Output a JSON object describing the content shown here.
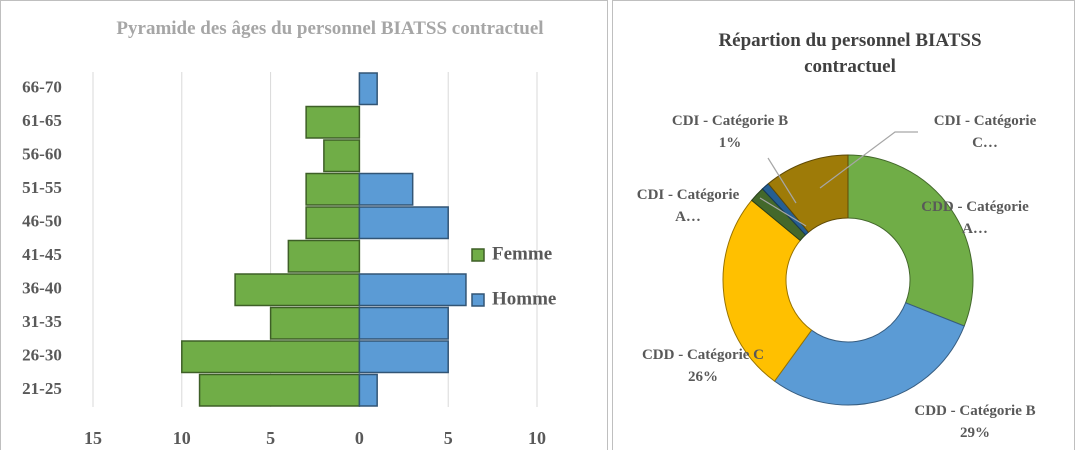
{
  "chart_data": [
    {
      "type": "bar",
      "orientation": "horizontal",
      "title": "Pyramide des âges du personnel BIATSS contractuel",
      "categories": [
        "21-25",
        "26-30",
        "31-35",
        "36-40",
        "41-45",
        "46-50",
        "51-55",
        "56-60",
        "61-65",
        "66-70"
      ],
      "series": [
        {
          "name": "Femme",
          "color": "#70ad47",
          "values": [
            -9,
            -10,
            -5,
            -7,
            -4,
            -3,
            -3,
            -2,
            -3,
            0
          ]
        },
        {
          "name": "Homme",
          "color": "#5b9bd5",
          "values": [
            1,
            5,
            5,
            6,
            0,
            5,
            3,
            0,
            0,
            1
          ]
        }
      ],
      "xlim": [
        -15,
        10
      ],
      "xticks": [
        {
          "value": -15,
          "label": "15"
        },
        {
          "value": -10,
          "label": "10"
        },
        {
          "value": -5,
          "label": "5"
        },
        0,
        5,
        10
      ],
      "grid": true,
      "legend": "right"
    },
    {
      "type": "donut",
      "title": "Répartion du personnel BIATSS contractuel",
      "categories": [
        "CDD - Catégorie A…",
        "CDD - Catégorie B",
        "CDD - Catégorie C",
        "CDI - Catégorie A…",
        "CDI - Catégorie B",
        "CDI - Catégorie C…"
      ],
      "values": [
        31,
        29,
        26,
        2,
        1,
        11
      ],
      "value_labels": [
        null,
        "29%",
        "26%",
        null,
        "1%",
        null
      ],
      "colors": [
        "#70ad47",
        "#5b9bd5",
        "#ffc000",
        "#43682b",
        "#255e91",
        "#9e7b08"
      ]
    }
  ]
}
